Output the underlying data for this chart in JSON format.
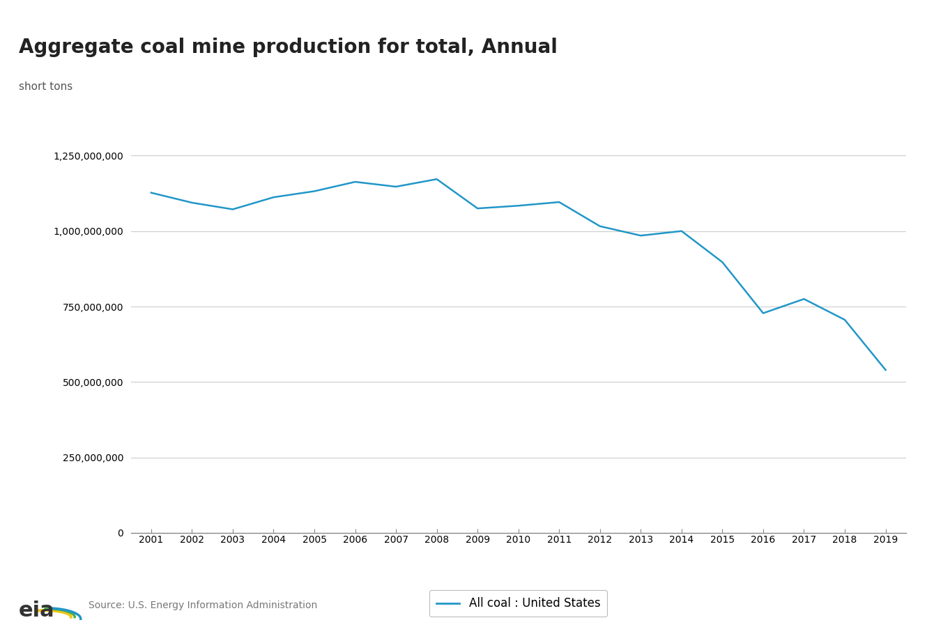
{
  "title": "Aggregate coal mine production for total, Annual",
  "ylabel": "short tons",
  "legend_label": "All coal : United States",
  "line_color": "#2196c8",
  "background_color": "#ffffff",
  "grid_color": "#cccccc",
  "years": [
    2001,
    2002,
    2003,
    2004,
    2005,
    2006,
    2007,
    2008,
    2009,
    2010,
    2011,
    2012,
    2013,
    2014,
    2015,
    2016,
    2017,
    2018,
    2019
  ],
  "values": [
    1127000000,
    1094000000,
    1072000000,
    1112000000,
    1132000000,
    1163000000,
    1147000000,
    1172000000,
    1075000000,
    1084000000,
    1096000000,
    1016000000,
    985000000,
    1000000000,
    897000000,
    728000000,
    775000000,
    706000000,
    540000000
  ],
  "ylim": [
    0,
    1350000000
  ],
  "yticks": [
    0,
    250000000,
    500000000,
    750000000,
    1000000000,
    1250000000
  ],
  "source_text": "Source: U.S. Energy Information Administration",
  "title_fontsize": 20,
  "label_fontsize": 11,
  "tick_fontsize": 10,
  "line_width": 1.8
}
